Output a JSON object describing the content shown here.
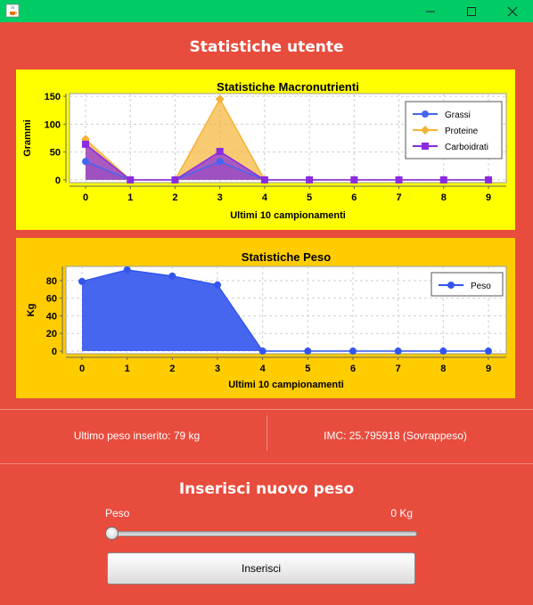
{
  "header": {
    "title": "Statistiche utente"
  },
  "macro_chart": {
    "title": "Statistiche Macronutrienti",
    "xlabel": "Ultimi 10 campionamenti",
    "ylabel": "Grammi",
    "legend": [
      "Grassi",
      "Proteine",
      "Carboidrati"
    ]
  },
  "peso_chart": {
    "title": "Statistiche Peso",
    "xlabel": "Ultimi 10 campionamenti",
    "ylabel": "Kg",
    "legend": [
      "Peso"
    ]
  },
  "chart_data": [
    {
      "type": "area",
      "title": "Statistiche Macronutrienti",
      "xlabel": "Ultimi 10 campionamenti",
      "ylabel": "Grammi",
      "x": [
        0,
        1,
        2,
        3,
        4,
        5,
        6,
        7,
        8,
        9
      ],
      "ylim": [
        -5,
        155
      ],
      "yticks": [
        0,
        50,
        100,
        150
      ],
      "grid": true,
      "legend_position": "top-right",
      "series": [
        {
          "name": "Grassi",
          "color": "#4466ee",
          "marker": "circle",
          "values": [
            33,
            0,
            0,
            33,
            0,
            0,
            0,
            0,
            0,
            0
          ]
        },
        {
          "name": "Proteine",
          "color": "#f5b335",
          "marker": "diamond",
          "values": [
            73,
            0,
            0,
            145,
            0,
            0,
            0,
            0,
            0,
            0
          ]
        },
        {
          "name": "Carboidrati",
          "color": "#8a2be2",
          "marker": "square",
          "values": [
            64,
            0,
            0,
            51,
            0,
            0,
            0,
            0,
            0,
            0
          ]
        }
      ]
    },
    {
      "type": "area",
      "title": "Statistiche Peso",
      "xlabel": "Ultimi 10 campionamenti",
      "ylabel": "Kg",
      "x": [
        0,
        1,
        2,
        3,
        4,
        5,
        6,
        7,
        8,
        9
      ],
      "ylim": [
        -3,
        96
      ],
      "yticks": [
        0,
        20,
        40,
        60,
        80
      ],
      "grid": true,
      "legend_position": "top-right",
      "series": [
        {
          "name": "Peso",
          "color": "#3355ee",
          "marker": "circle",
          "values": [
            79,
            92,
            85,
            75,
            0,
            0,
            0,
            0,
            0,
            0
          ]
        }
      ]
    }
  ],
  "stats": {
    "last_weight": "Ultimo peso inserito: 79 kg",
    "bmi": "IMC: 25.795918 (Sovrappeso)"
  },
  "insert": {
    "title": "Inserisci nuovo peso",
    "slider_label": "Peso",
    "slider_value": "0 Kg",
    "slider_fraction": 0,
    "button_label": "Inserisci"
  },
  "icons": {
    "app": "java-cup-icon",
    "minimize": "minimize-icon",
    "maximize": "maximize-icon",
    "close": "close-icon"
  },
  "colors": {
    "titlebar": "#00cc66",
    "background": "#e84c3d",
    "macro_panel": "#ffff00",
    "peso_panel": "#ffcc00"
  }
}
